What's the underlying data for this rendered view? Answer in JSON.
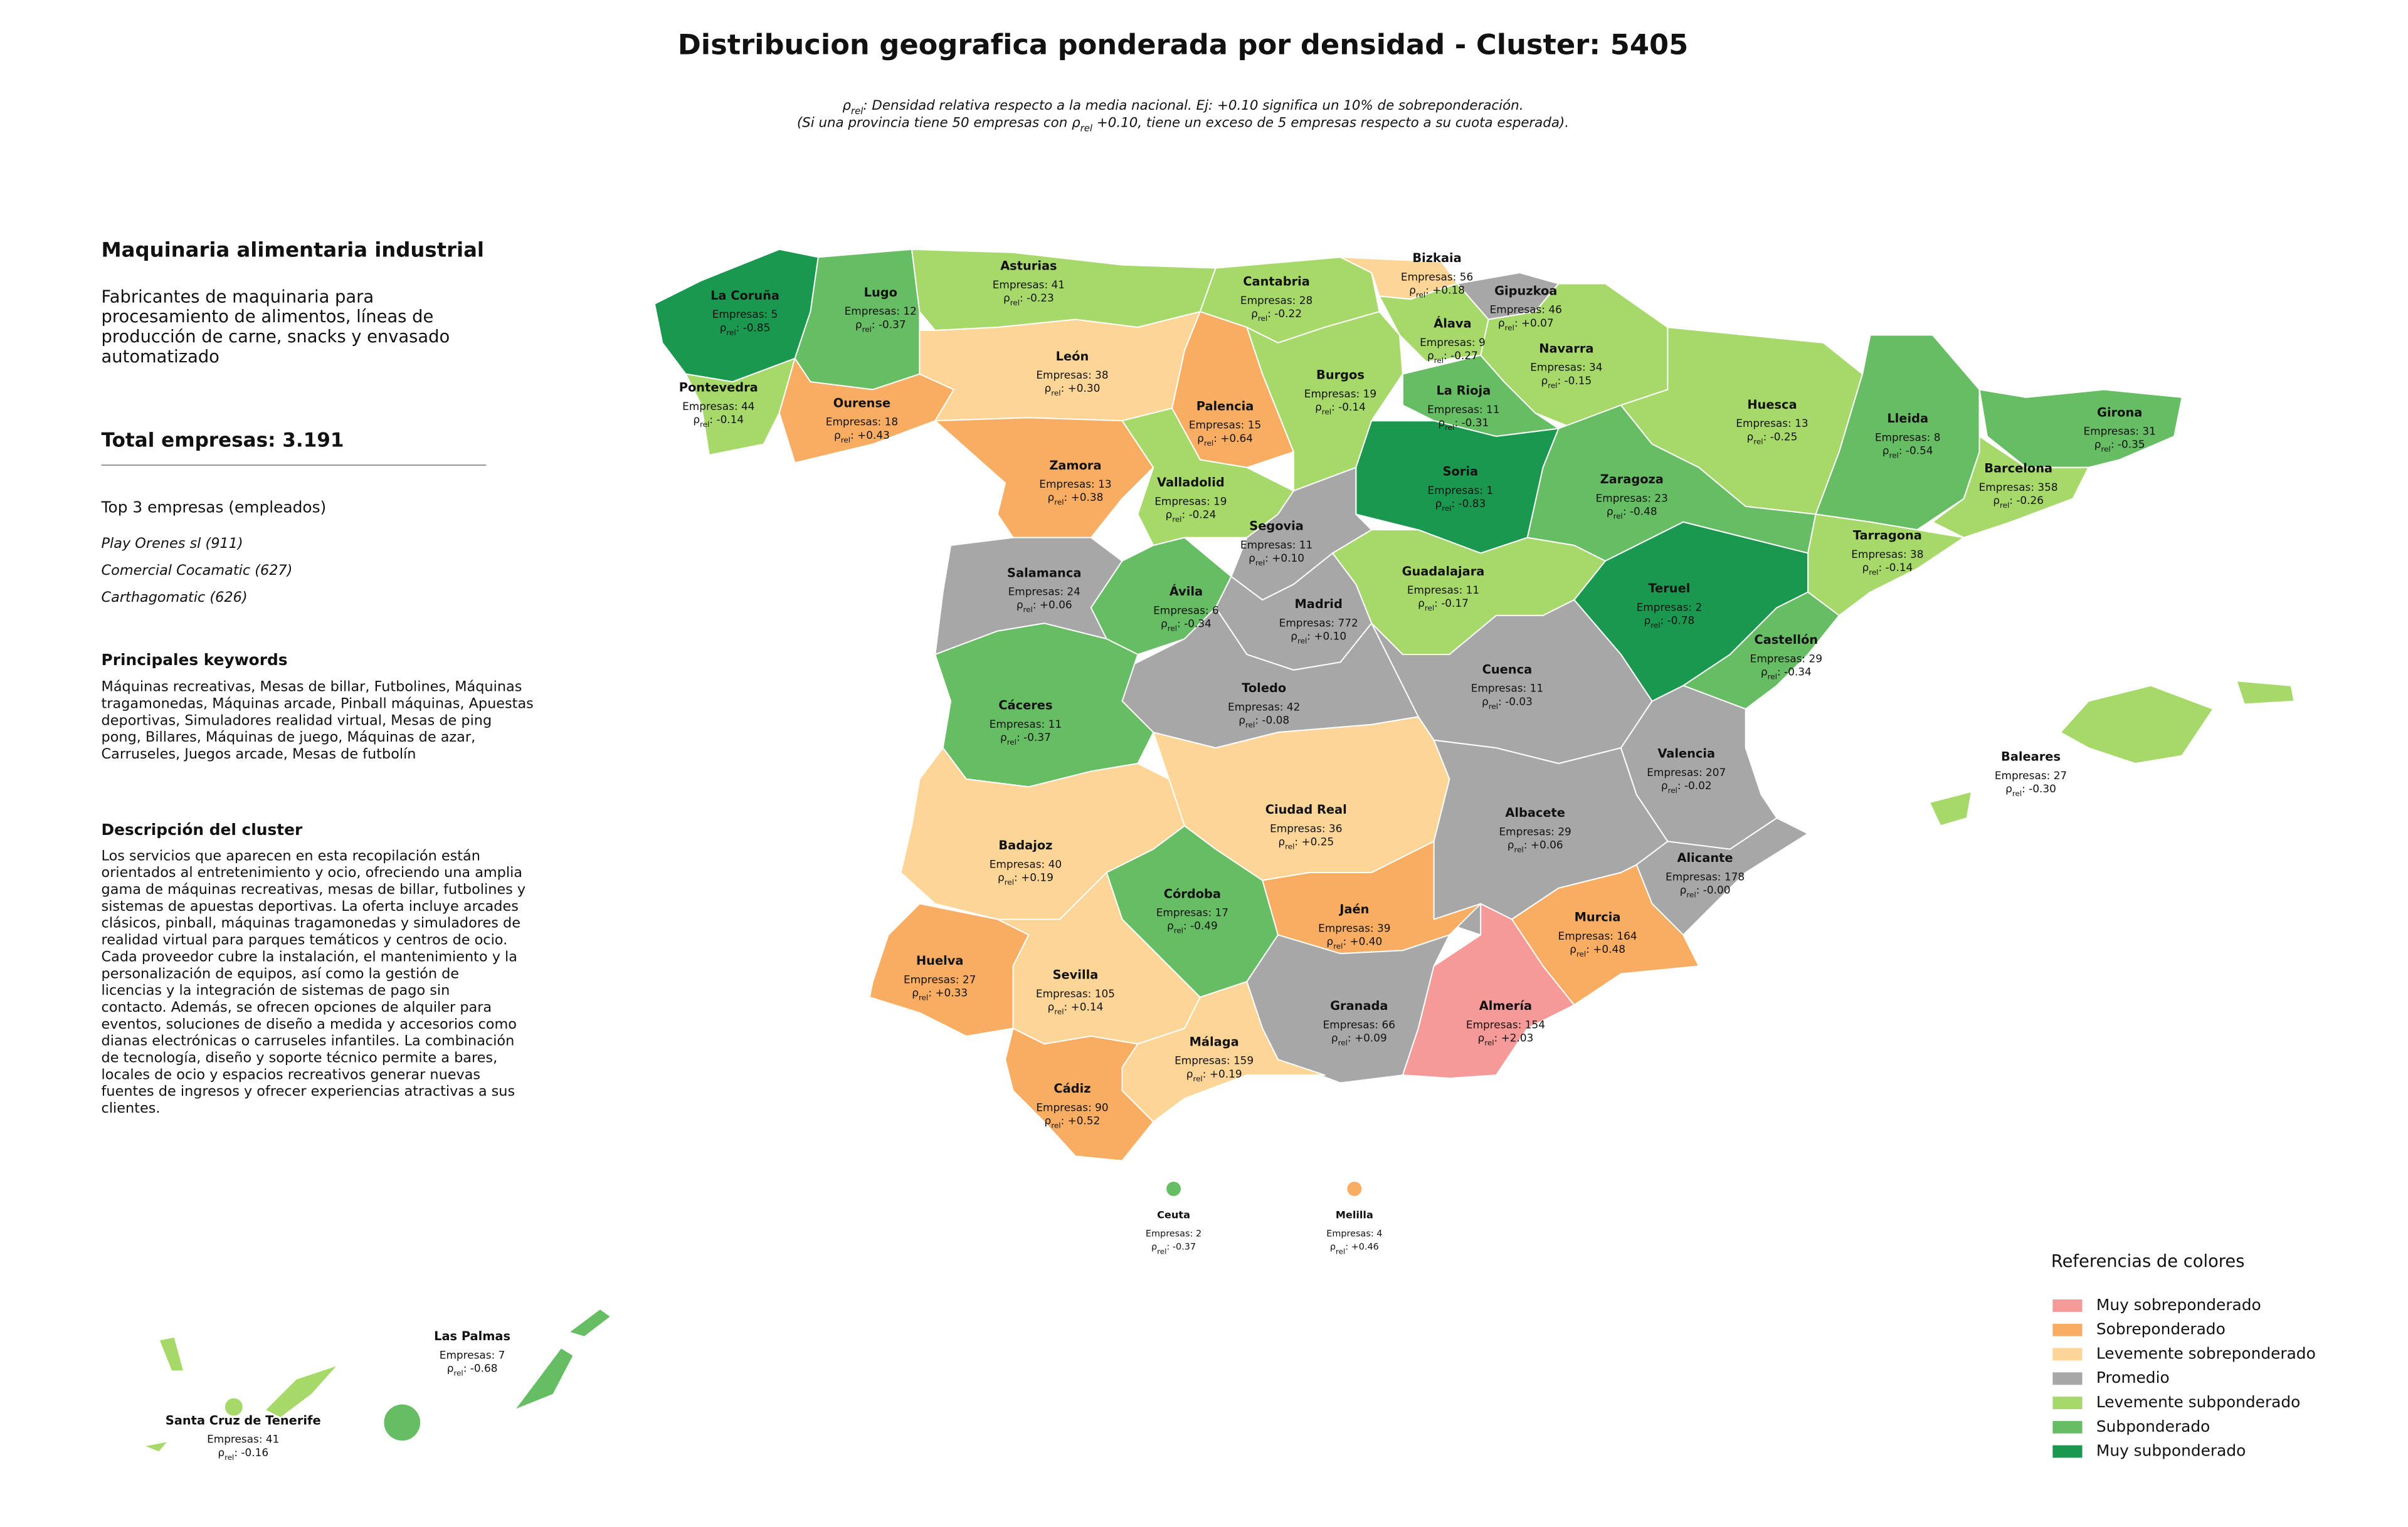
{
  "title": "Distribucion geografica ponderada por densidad - Cluster: 5405",
  "subtitle": {
    "line1": [
      "ρ",
      "rel",
      ": Densidad relativa respecto a la media nacional. Ej: +0.10 significa un 10% de sobreponderación."
    ],
    "line2": [
      "(Si una provincia tiene 50 empresas con ",
      "ρ",
      "rel",
      " +0.10, tiene un exceso de 5 empresas respecto a su cuota esperada)."
    ]
  },
  "panel": {
    "heading": "Maquinaria alimentaria industrial",
    "summary": [
      "Fabricantes de maquinaria para",
      "procesamiento de alimentos, líneas de",
      "producción de carne, snacks y envasado",
      "automatizado"
    ],
    "total": "Total empresas: 3.191",
    "top_title": "Top 3 empresas (empleados)",
    "top": [
      "Play Orenes sl (911)",
      "Comercial Cocamatic (627)",
      "Carthagomatic (626)"
    ],
    "keywords_title": "Principales keywords",
    "keywords": [
      "Máquinas recreativas, Mesas de billar, Futbolines, Máquinas",
      "tragamonedas, Máquinas arcade, Pinball máquinas, Apuestas",
      "deportivas, Simuladores realidad virtual, Mesas de ping",
      "pong, Billares, Máquinas de juego, Máquinas de azar,",
      "Carruseles, Juegos arcade, Mesas de futbolín"
    ],
    "description_title": "Descripción del cluster",
    "description": [
      "Los servicios que aparecen en esta recopilación están",
      "orientados al entretenimiento y ocio, ofreciendo una amplia",
      "gama de máquinas recreativas, mesas de billar, futbolines y",
      "sistemas de apuestas deportivas. La oferta incluye arcades",
      "clásicos, pinball, máquinas tragamonedas y simuladores de",
      "realidad virtual para parques temáticos y centros de ocio.",
      "Cada proveedor cubre la instalación, el mantenimiento y la",
      "personalización de equipos, así como la gestión de",
      "licencias y la integración de sistemas de pago sin",
      "contacto. Además, se ofrecen opciones de alquiler para",
      "eventos, soluciones de diseño a medida y accesorios como",
      "dianas electrónicas o carruseles infantiles. La combinación",
      "de tecnología, diseño y soporte técnico permite a bares,",
      "locales de ocio y espacios recreativos generar nuevas",
      "fuentes de ingresos y ofrecer experiencias atractivas a sus",
      "clientes."
    ]
  },
  "count_prefix": "Empresas: ",
  "rho_symbol": "ρ",
  "rho_sub": "rel",
  "rho_sep": ": ",
  "provinces": [
    {
      "name": "La Coruña",
      "count": 5,
      "rho": "-0.85",
      "color": "#1a9850"
    },
    {
      "name": "Lugo",
      "count": 12,
      "rho": "-0.37",
      "color": "#66bd63"
    },
    {
      "name": "Asturias",
      "count": 41,
      "rho": "-0.23",
      "color": "#a6d96a"
    },
    {
      "name": "Cantabria",
      "count": 28,
      "rho": "-0.22",
      "color": "#a6d96a"
    },
    {
      "name": "Bizkaia",
      "count": 56,
      "rho": "+0.18",
      "color": "#fdd597"
    },
    {
      "name": "Gipuzkoa",
      "count": 46,
      "rho": "+0.07",
      "color": "#a7a7a7"
    },
    {
      "name": "Álava",
      "count": 9,
      "rho": "-0.27",
      "color": "#a6d96a"
    },
    {
      "name": "Navarra",
      "count": 34,
      "rho": "-0.15",
      "color": "#a6d96a"
    },
    {
      "name": "Pontevedra",
      "count": 44,
      "rho": "-0.14",
      "color": "#a6d96a"
    },
    {
      "name": "Ourense",
      "count": 18,
      "rho": "+0.43",
      "color": "#f9ad62"
    },
    {
      "name": "León",
      "count": 38,
      "rho": "+0.30",
      "color": "#fdd597"
    },
    {
      "name": "Palencia",
      "count": 15,
      "rho": "+0.64",
      "color": "#f9ad62"
    },
    {
      "name": "Burgos",
      "count": 19,
      "rho": "-0.14",
      "color": "#a6d96a"
    },
    {
      "name": "La Rioja",
      "count": 11,
      "rho": "-0.31",
      "color": "#66bd63"
    },
    {
      "name": "Huesca",
      "count": 13,
      "rho": "-0.25",
      "color": "#a6d96a"
    },
    {
      "name": "Lleida",
      "count": 8,
      "rho": "-0.54",
      "color": "#66bd63"
    },
    {
      "name": "Girona",
      "count": 31,
      "rho": "-0.35",
      "color": "#66bd63"
    },
    {
      "name": "Barcelona",
      "count": 358,
      "rho": "-0.26",
      "color": "#a6d96a"
    },
    {
      "name": "Zamora",
      "count": 13,
      "rho": "+0.38",
      "color": "#f9ad62"
    },
    {
      "name": "Valladolid",
      "count": 19,
      "rho": "-0.24",
      "color": "#a6d96a"
    },
    {
      "name": "Soria",
      "count": 1,
      "rho": "-0.83",
      "color": "#1a9850"
    },
    {
      "name": "Zaragoza",
      "count": 23,
      "rho": "-0.48",
      "color": "#66bd63"
    },
    {
      "name": "Tarragona",
      "count": 38,
      "rho": "-0.14",
      "color": "#a6d96a"
    },
    {
      "name": "Segovia",
      "count": 11,
      "rho": "+0.10",
      "color": "#a7a7a7"
    },
    {
      "name": "Guadalajara",
      "count": 11,
      "rho": "-0.17",
      "color": "#a6d96a"
    },
    {
      "name": "Salamanca",
      "count": 24,
      "rho": "+0.06",
      "color": "#a7a7a7"
    },
    {
      "name": "Ávila",
      "count": 6,
      "rho": "-0.34",
      "color": "#66bd63"
    },
    {
      "name": "Madrid",
      "count": 772,
      "rho": "+0.10",
      "color": "#a7a7a7"
    },
    {
      "name": "Teruel",
      "count": 2,
      "rho": "-0.78",
      "color": "#1a9850"
    },
    {
      "name": "Castellón",
      "count": 29,
      "rho": "-0.34",
      "color": "#66bd63"
    },
    {
      "name": "Toledo",
      "count": 42,
      "rho": "-0.08",
      "color": "#a7a7a7"
    },
    {
      "name": "Cuenca",
      "count": 11,
      "rho": "-0.03",
      "color": "#a7a7a7"
    },
    {
      "name": "Cáceres",
      "count": 11,
      "rho": "-0.37",
      "color": "#66bd63"
    },
    {
      "name": "Valencia",
      "count": 207,
      "rho": "-0.02",
      "color": "#a7a7a7"
    },
    {
      "name": "Baleares",
      "count": 27,
      "rho": "-0.30",
      "color": "#a6d96a"
    },
    {
      "name": "Ciudad Real",
      "count": 36,
      "rho": "+0.25",
      "color": "#fdd597"
    },
    {
      "name": "Albacete",
      "count": 29,
      "rho": "+0.06",
      "color": "#a7a7a7"
    },
    {
      "name": "Badajoz",
      "count": 40,
      "rho": "+0.19",
      "color": "#fdd597"
    },
    {
      "name": "Alicante",
      "count": 178,
      "rho": "-0.00",
      "color": "#a7a7a7"
    },
    {
      "name": "Córdoba",
      "count": 17,
      "rho": "-0.49",
      "color": "#66bd63"
    },
    {
      "name": "Jaén",
      "count": 39,
      "rho": "+0.40",
      "color": "#f9ad62"
    },
    {
      "name": "Murcia",
      "count": 164,
      "rho": "+0.48",
      "color": "#f9ad62"
    },
    {
      "name": "Huelva",
      "count": 27,
      "rho": "+0.33",
      "color": "#f9ad62"
    },
    {
      "name": "Sevilla",
      "count": 105,
      "rho": "+0.14",
      "color": "#fdd597"
    },
    {
      "name": "Granada",
      "count": 66,
      "rho": "+0.09",
      "color": "#a7a7a7"
    },
    {
      "name": "Almería",
      "count": 154,
      "rho": "+2.03",
      "color": "#f59a98"
    },
    {
      "name": "Málaga",
      "count": 159,
      "rho": "+0.19",
      "color": "#fdd597"
    },
    {
      "name": "Cádiz",
      "count": 90,
      "rho": "+0.52",
      "color": "#f9ad62"
    },
    {
      "name": "Ceuta",
      "count": 2,
      "rho": "-0.37",
      "color": "#66bd63"
    },
    {
      "name": "Melilla",
      "count": 4,
      "rho": "+0.46",
      "color": "#f9ad62"
    },
    {
      "name": "Las Palmas",
      "count": 7,
      "rho": "-0.68",
      "color": "#66bd63"
    },
    {
      "name": "Santa Cruz de Tenerife",
      "count": 41,
      "rho": "-0.16",
      "color": "#a6d96a"
    }
  ],
  "legend": {
    "title": "Referencias de colores",
    "items": [
      {
        "label": "Muy sobreponderado",
        "color": "#f59a98"
      },
      {
        "label": "Sobreponderado",
        "color": "#f9ad62"
      },
      {
        "label": "Levemente sobreponderado",
        "color": "#fdd597"
      },
      {
        "label": "Promedio",
        "color": "#a7a7a7"
      },
      {
        "label": "Levemente subponderado",
        "color": "#a6d96a"
      },
      {
        "label": "Subponderado",
        "color": "#66bd63"
      },
      {
        "label": "Muy subponderado",
        "color": "#1a9850"
      }
    ]
  }
}
